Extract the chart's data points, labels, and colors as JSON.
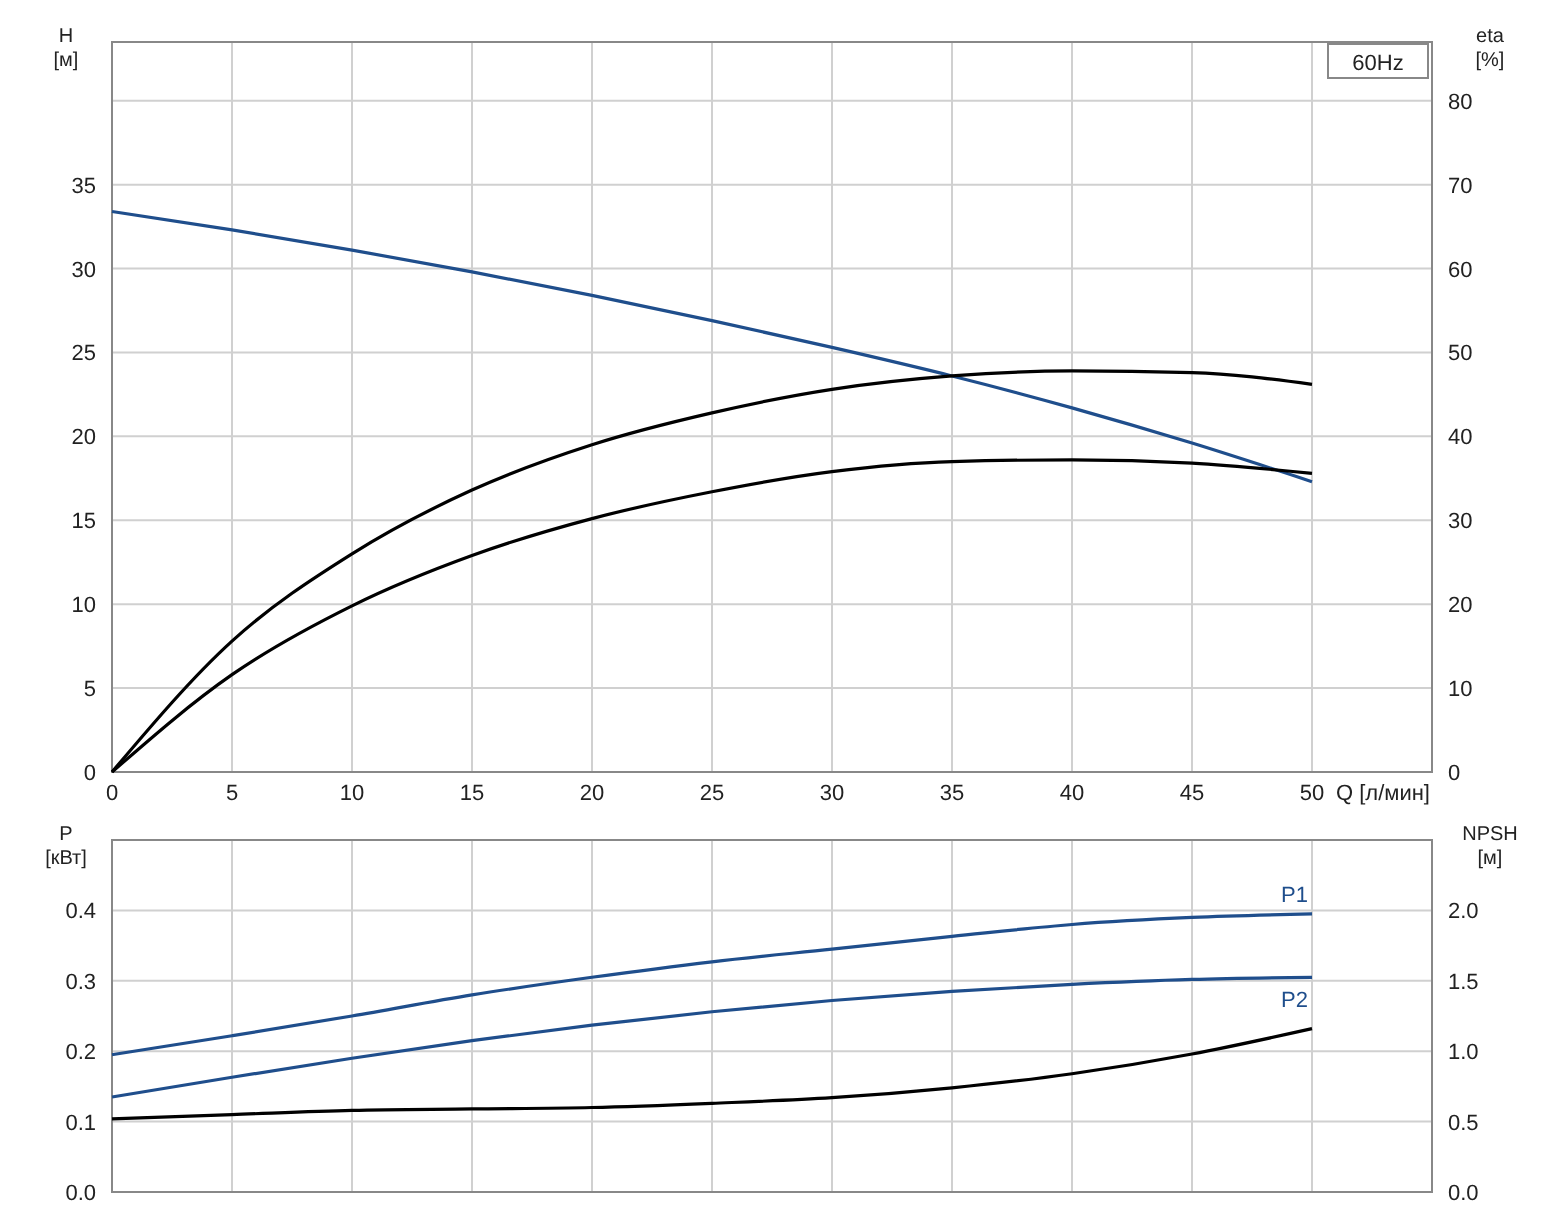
{
  "chart_data": [
    {
      "type": "line",
      "xlabel": "Q [л/мин]",
      "ylabel": "H [м]",
      "y2label": "eta [%]",
      "annotations": [
        "60Hz"
      ],
      "grid": true,
      "marker": "none",
      "line_style": "solid",
      "xlim": [
        0,
        55
      ],
      "xticks": [
        0,
        5,
        10,
        15,
        20,
        25,
        30,
        35,
        40,
        45,
        50,
        {
          "value": 55,
          "label": null
        }
      ],
      "ylim": [
        0,
        43.5
      ],
      "yticks": [
        0,
        5,
        10,
        15,
        20,
        25,
        30,
        35,
        {
          "value": 40,
          "label": null
        }
      ],
      "y2lim": [
        0,
        87
      ],
      "y2ticks": [
        0,
        10,
        20,
        30,
        40,
        50,
        60,
        70,
        80
      ],
      "x": [
        0,
        5,
        10,
        15,
        20,
        25,
        30,
        35,
        40,
        45,
        50
      ],
      "series": [
        {
          "color": "#1f4e8c",
          "values": [
            33.4,
            32.3,
            31.1,
            29.8,
            28.4,
            26.9,
            25.3,
            23.6,
            21.7,
            19.6,
            17.3
          ]
        },
        {
          "color": "#000000",
          "axis": "y2",
          "values": [
            0,
            15.6,
            26,
            33.6,
            39,
            42.8,
            45.6,
            47.2,
            47.8,
            47.6,
            46.2
          ]
        },
        {
          "color": "#000000",
          "axis": "y2",
          "values": [
            0,
            11.6,
            19.8,
            25.8,
            30.2,
            33.4,
            35.8,
            37,
            37.2,
            36.8,
            35.6
          ]
        }
      ]
    },
    {
      "type": "line",
      "ylabel": "P [кВт]",
      "y2label": "NPSH [м]",
      "grid": true,
      "marker": "none",
      "line_style": "solid",
      "tick_labels": "y",
      "xlim": [
        0,
        55
      ],
      "xticks": [
        0,
        5,
        10,
        15,
        20,
        25,
        30,
        35,
        40,
        45,
        50,
        55
      ],
      "ylim": [
        0,
        0.5
      ],
      "yticks": [
        {
          "value": 0,
          "label": "0.0"
        },
        {
          "value": 0.1,
          "label": "0.1"
        },
        {
          "value": 0.2,
          "label": "0.2"
        },
        {
          "value": 0.3,
          "label": "0.3"
        },
        {
          "value": 0.4,
          "label": "0.4"
        }
      ],
      "y2lim": [
        0,
        2.5
      ],
      "y2ticks": [
        {
          "value": 0,
          "label": "0.0"
        },
        {
          "value": 0.5,
          "label": "0.5"
        },
        {
          "value": 1,
          "label": "1.0"
        },
        {
          "value": 1.5,
          "label": "1.5"
        },
        {
          "value": 2,
          "label": "2.0"
        }
      ],
      "x": [
        0,
        5,
        10,
        15,
        20,
        25,
        30,
        35,
        40,
        45,
        50
      ],
      "series": [
        {
          "name": "P1",
          "color": "#1f4e8c",
          "values": [
            0.195,
            0.222,
            0.25,
            0.28,
            0.305,
            0.327,
            0.345,
            0.363,
            0.38,
            0.39,
            0.395
          ]
        },
        {
          "name": "P2",
          "color": "#1f4e8c",
          "values": [
            0.135,
            0.163,
            0.19,
            0.215,
            0.237,
            0.256,
            0.272,
            0.285,
            0.295,
            0.302,
            0.305
          ]
        },
        {
          "color": "#000000",
          "axis": "y2",
          "values": [
            0.52,
            0.55,
            0.58,
            0.59,
            0.6,
            0.63,
            0.67,
            0.74,
            0.84,
            0.98,
            1.16
          ]
        }
      ]
    }
  ]
}
